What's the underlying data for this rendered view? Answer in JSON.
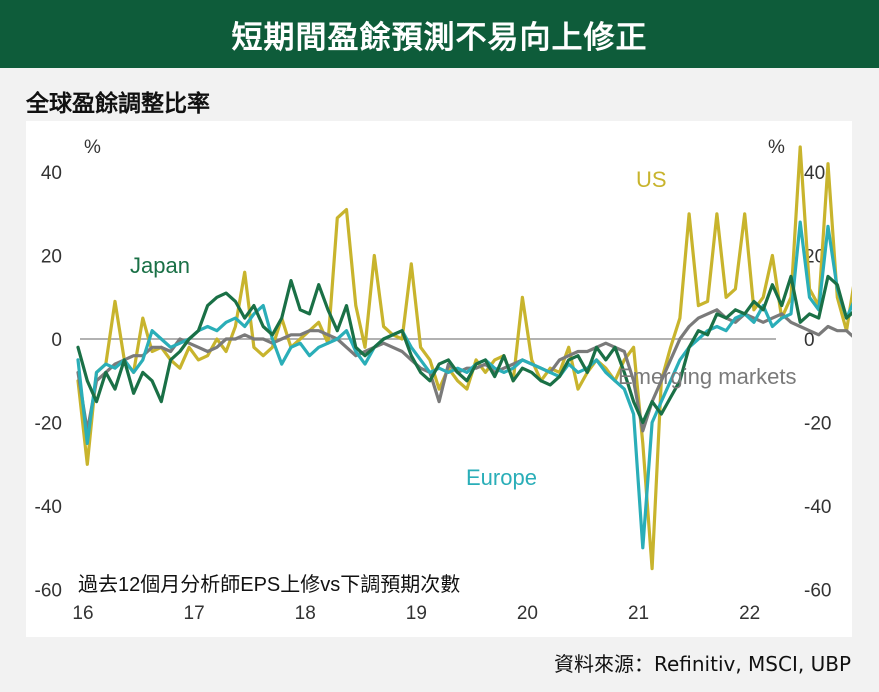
{
  "header": {
    "title": "短期間盈餘預測不易向上修正"
  },
  "subtitle": "全球盈餘調整比率",
  "source": "資料來源：Refinitiv, MSCI, UBP",
  "colors": {
    "header_bg": "#0e5c3a",
    "japan": "#1a7046",
    "us": "#c8b42d",
    "europe": "#2aaeb8",
    "emerging": "#7a7a7a",
    "zero_line": "#999999"
  },
  "chart_data": {
    "type": "line",
    "note": "過去12個月分析師EPS上修vs下調預期次數",
    "y_unit_left": "%",
    "y_unit_right": "%",
    "ylim": [
      -60,
      50
    ],
    "yticks": [
      40,
      20,
      0,
      -20,
      -40,
      -60
    ],
    "xlim": [
      2016.0,
      2022.3
    ],
    "xticks": [
      {
        "value": 2016,
        "label": "16"
      },
      {
        "value": 2017,
        "label": "17"
      },
      {
        "value": 2018,
        "label": "18"
      },
      {
        "value": 2019,
        "label": "19"
      },
      {
        "value": 2020,
        "label": "20"
      },
      {
        "value": 2021,
        "label": "21"
      },
      {
        "value": 2022,
        "label": "22"
      }
    ],
    "grid": false,
    "x_start": 2016.0,
    "x_step_months": 1,
    "series": [
      {
        "name": "US",
        "color": "#c8b42d",
        "values": [
          -10,
          -30,
          -8,
          -6,
          9,
          -5,
          -8,
          5,
          -3,
          -2,
          -5,
          -7,
          -2,
          -5,
          -4,
          0,
          -3,
          3,
          16,
          -2,
          -4,
          -2,
          5,
          -2,
          0,
          2,
          4,
          -1,
          29,
          31,
          8,
          -2,
          20,
          3,
          1,
          0,
          18,
          -2,
          -5,
          -12,
          -7,
          -10,
          -12,
          -5,
          -8,
          -5,
          -4,
          -10,
          10,
          -5,
          -10,
          -7,
          -8,
          -2,
          -12,
          -8,
          -5,
          -7,
          -10,
          -5,
          -2,
          -25,
          -55,
          -10,
          -2,
          5,
          30,
          8,
          9,
          30,
          10,
          12,
          30,
          7,
          10,
          20,
          5,
          10,
          46,
          12,
          8,
          42,
          10,
          2,
          16,
          5,
          3,
          5,
          7
        ]
      },
      {
        "name": "Japan",
        "color": "#1a7046",
        "values": [
          -2,
          -10,
          -15,
          -8,
          -12,
          -5,
          -13,
          -8,
          -10,
          -15,
          -5,
          -3,
          0,
          2,
          8,
          10,
          11,
          9,
          5,
          8,
          3,
          1,
          5,
          14,
          7,
          6,
          13,
          7,
          2,
          8,
          -2,
          -4,
          -2,
          0,
          1,
          2,
          -4,
          -8,
          -10,
          -6,
          -5,
          -8,
          -10,
          -6,
          -5,
          -9,
          -4,
          -10,
          -7,
          -8,
          -10,
          -11,
          -9,
          -5,
          -4,
          -8,
          -2,
          -5,
          -2,
          -8,
          -15,
          -20,
          -15,
          -18,
          -14,
          -10,
          -2,
          2,
          1,
          6,
          5,
          7,
          6,
          9,
          7,
          13,
          8,
          15,
          4,
          6,
          5,
          15,
          13,
          5,
          7,
          6,
          3,
          2,
          7
        ]
      },
      {
        "name": "Europe",
        "color": "#2aaeb8",
        "values": [
          -5,
          -25,
          -8,
          -6,
          -7,
          -5,
          -8,
          -5,
          2,
          0,
          -2,
          -1,
          0,
          2,
          3,
          2,
          4,
          5,
          3,
          6,
          8,
          0,
          -6,
          -2,
          -1,
          -4,
          -2,
          -1,
          0,
          2,
          -3,
          -6,
          -2,
          0,
          1,
          2,
          -2,
          -5,
          -8,
          -7,
          -8,
          -7,
          -8,
          -6,
          -5,
          -7,
          -8,
          -7,
          -5,
          -6,
          -7,
          -8,
          -9,
          -6,
          -8,
          -7,
          -5,
          -8,
          -10,
          -12,
          -18,
          -50,
          -20,
          -15,
          -10,
          -5,
          -2,
          0,
          2,
          3,
          2,
          5,
          6,
          4,
          8,
          3,
          5,
          6,
          28,
          10,
          7,
          27,
          12,
          5,
          10,
          4,
          2,
          6,
          7
        ]
      },
      {
        "name": "Emerging markets",
        "color": "#7a7a7a",
        "values": [
          -8,
          -22,
          -10,
          -8,
          -6,
          -5,
          -4,
          -4,
          -2,
          -2,
          -3,
          0,
          -1,
          -2,
          -3,
          -2,
          0,
          0,
          1,
          0,
          0,
          -1,
          0,
          1,
          1,
          2,
          2,
          1,
          0,
          -2,
          -4,
          -3,
          -2,
          -1,
          -2,
          -3,
          -5,
          -7,
          -8,
          -15,
          -6,
          -8,
          -7,
          -7,
          -6,
          -8,
          -7,
          -6,
          -5,
          -6,
          -7,
          -8,
          -5,
          -4,
          -3,
          -3,
          -2,
          -1,
          -2,
          -3,
          -10,
          -22,
          -15,
          -10,
          -5,
          0,
          3,
          5,
          6,
          7,
          5,
          4,
          6,
          5,
          4,
          5,
          6,
          4,
          3,
          2,
          1,
          3,
          2,
          2,
          0,
          -1,
          -3,
          -2,
          -1
        ]
      }
    ],
    "series_labels": [
      "Japan",
      "US",
      "Europe",
      "Emerging markets"
    ]
  }
}
